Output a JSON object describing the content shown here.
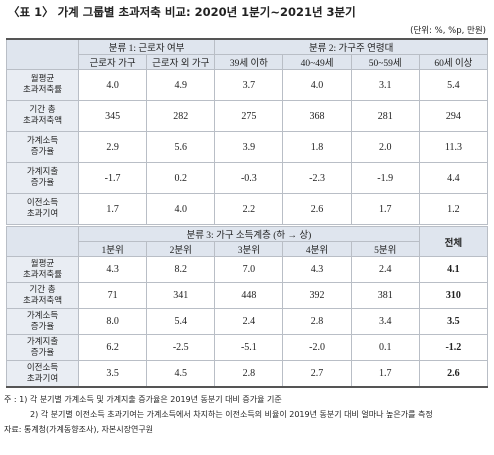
{
  "title": "〈표 1〉 가계 그룹별 초과저축 비교: 2020년 1분기~2021년 3분기",
  "unit": "(단위: %, %p, 만원)",
  "table1": {
    "group_headers": [
      "분류 1: 근로자 여부",
      "분류 2: 가구주 연령대"
    ],
    "columns": [
      "근로자 가구",
      "근로자 외 가구",
      "39세 이하",
      "40~49세",
      "50~59세",
      "60세 이상"
    ],
    "rows": [
      {
        "label": [
          "월평균",
          "초과저축률"
        ],
        "values": [
          "4.0",
          "4.9",
          "3.7",
          "4.0",
          "3.1",
          "5.4"
        ]
      },
      {
        "label": [
          "기간 총",
          "초과저축액"
        ],
        "values": [
          "345",
          "282",
          "275",
          "368",
          "281",
          "294"
        ]
      },
      {
        "label": [
          "가계소득",
          "증가율"
        ],
        "values": [
          "2.9",
          "5.6",
          "3.9",
          "1.8",
          "2.0",
          "11.3"
        ]
      },
      {
        "label": [
          "가계지출",
          "증가율"
        ],
        "values": [
          "-1.7",
          "0.2",
          "-0.3",
          "-2.3",
          "-1.9",
          "4.4"
        ]
      },
      {
        "label": [
          "이전소득",
          "초과기여"
        ],
        "values": [
          "1.7",
          "4.0",
          "2.2",
          "2.6",
          "1.7",
          "1.2"
        ]
      }
    ]
  },
  "table2": {
    "group_header": "분류 3: 가구 소득계층 (하 → 상)",
    "total_header": "전체",
    "columns": [
      "1분위",
      "2분위",
      "3분위",
      "4분위",
      "5분위"
    ],
    "rows": [
      {
        "label": [
          "월평균",
          "초과저축률"
        ],
        "values": [
          "4.3",
          "8.2",
          "7.0",
          "4.3",
          "2.4",
          "4.1"
        ]
      },
      {
        "label": [
          "기간 총",
          "초과저축액"
        ],
        "values": [
          "71",
          "341",
          "448",
          "392",
          "381",
          "310"
        ]
      },
      {
        "label": [
          "가계소득",
          "증가율"
        ],
        "values": [
          "8.0",
          "5.4",
          "2.4",
          "2.8",
          "3.4",
          "3.5"
        ]
      },
      {
        "label": [
          "가계지출",
          "증가율"
        ],
        "values": [
          "6.2",
          "-2.5",
          "-5.1",
          "-2.0",
          "0.1",
          "-1.2"
        ]
      },
      {
        "label": [
          "이전소득",
          "초과기여"
        ],
        "values": [
          "3.5",
          "4.5",
          "2.8",
          "2.7",
          "1.7",
          "2.6"
        ]
      }
    ]
  },
  "notes": {
    "prefix": "주 :",
    "items": [
      "1) 각 분기별 가계소득 및 가계지출 증가율은 2019년 동분기 대비 증가율 기준",
      "2) 각 분기별 이전소득 초과기여는 가계소득에서 차지하는 이전소득의 비율이 2019년 동분기 대비 얼마나 높은가를 측정"
    ],
    "source": "자료: 통계청(가계동향조사), 자본시장연구원"
  }
}
